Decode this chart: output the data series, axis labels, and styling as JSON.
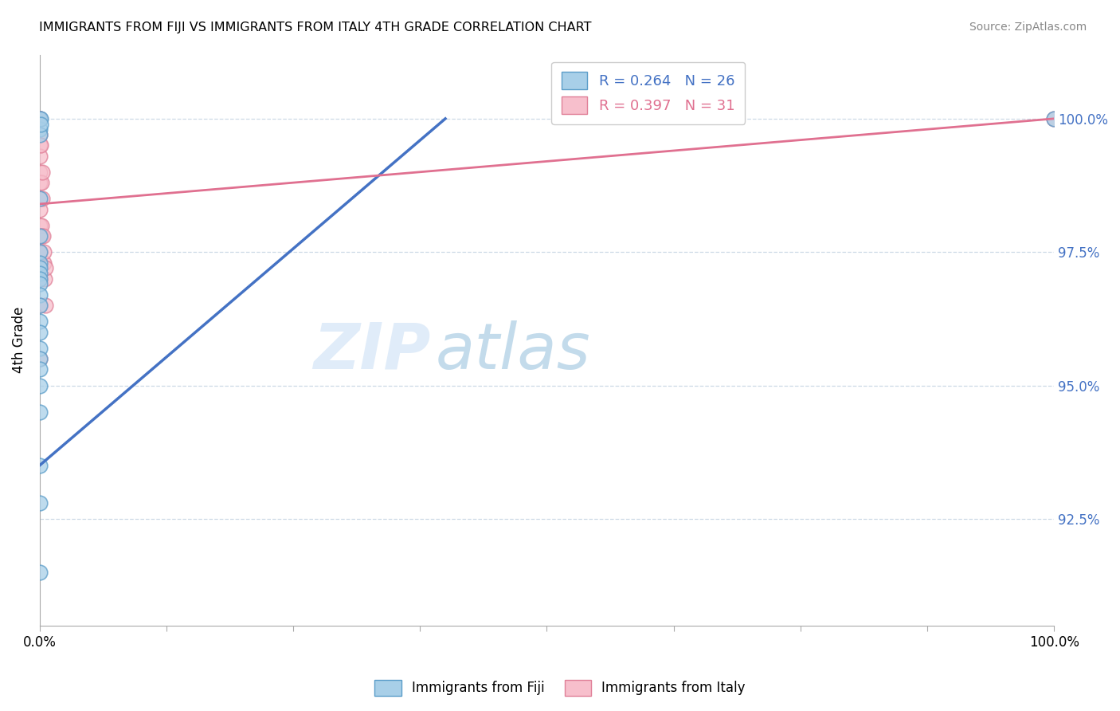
{
  "title": "IMMIGRANTS FROM FIJI VS IMMIGRANTS FROM ITALY 4TH GRADE CORRELATION CHART",
  "source": "Source: ZipAtlas.com",
  "legend_bottom_fiji": "Immigrants from Fiji",
  "legend_bottom_italy": "Immigrants from Italy",
  "ylabel": "4th Grade",
  "xlim": [
    0.0,
    100.0
  ],
  "ylim": [
    90.5,
    101.2
  ],
  "yticks": [
    92.5,
    95.0,
    97.5,
    100.0
  ],
  "ytick_labels": [
    "92.5%",
    "95.0%",
    "97.5%",
    "100.0%"
  ],
  "xticks": [
    0.0,
    12.5,
    25.0,
    37.5,
    50.0,
    62.5,
    75.0,
    87.5,
    100.0
  ],
  "xtick_labels": [
    "0.0%",
    "",
    "",
    "",
    "",
    "",
    "",
    "",
    "100.0%"
  ],
  "fiji_R": 0.264,
  "fiji_N": 26,
  "italy_R": 0.397,
  "italy_N": 31,
  "fiji_color": "#a8cfe8",
  "italy_color": "#f7bfcc",
  "fiji_edge_color": "#5b9dc9",
  "italy_edge_color": "#e08098",
  "fiji_line_color": "#4472c4",
  "italy_line_color": "#e07090",
  "fiji_x": [
    0.0,
    0.0,
    0.0,
    0.08,
    0.12,
    0.0,
    0.0,
    0.0,
    0.0,
    0.0,
    0.0,
    0.0,
    0.0,
    0.0,
    0.0,
    0.0,
    0.0,
    0.0,
    0.0,
    0.0,
    0.0,
    0.0,
    0.0,
    0.0,
    0.0,
    100.0
  ],
  "fiji_y": [
    100.0,
    99.8,
    99.7,
    100.0,
    99.9,
    98.5,
    97.8,
    97.5,
    97.3,
    97.2,
    97.1,
    97.0,
    96.9,
    96.7,
    96.5,
    96.2,
    96.0,
    95.7,
    95.5,
    95.3,
    95.0,
    94.5,
    93.5,
    92.8,
    91.5,
    100.0
  ],
  "italy_x": [
    0.0,
    0.0,
    0.0,
    0.0,
    0.0,
    0.0,
    0.0,
    0.0,
    0.0,
    0.0,
    0.0,
    0.0,
    0.0,
    0.0,
    0.0,
    0.0,
    0.0,
    0.0,
    0.12,
    0.15,
    0.18,
    0.22,
    0.25,
    0.28,
    0.32,
    0.38,
    0.42,
    0.5,
    0.55,
    0.6,
    100.0
  ],
  "italy_y": [
    100.0,
    100.0,
    100.0,
    100.0,
    99.7,
    99.5,
    99.3,
    99.0,
    98.8,
    98.5,
    98.3,
    98.0,
    97.8,
    97.5,
    97.3,
    97.0,
    96.5,
    95.5,
    99.5,
    98.8,
    98.0,
    97.8,
    99.0,
    98.5,
    97.8,
    97.3,
    97.5,
    97.0,
    96.5,
    97.2,
    100.0
  ],
  "fiji_trend_x": [
    0.0,
    40.0
  ],
  "fiji_trend_y_start": 93.5,
  "fiji_trend_y_end": 100.0,
  "italy_trend_x": [
    0.0,
    100.0
  ],
  "italy_trend_y_start": 98.4,
  "italy_trend_y_end": 100.0
}
